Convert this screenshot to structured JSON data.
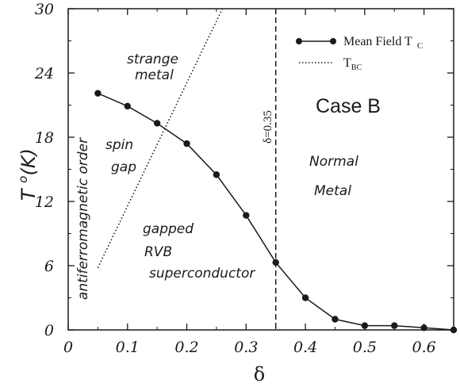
{
  "chart_data": {
    "type": "line",
    "title": "",
    "xlabel": "δ",
    "ylabel": "T (°K)",
    "xlim": [
      0,
      0.65
    ],
    "ylim": [
      0,
      30
    ],
    "xticks": [
      0,
      0.1,
      0.2,
      0.3,
      0.4,
      0.5,
      0.6
    ],
    "xtick_labels": [
      "0",
      "0.1",
      "0.2",
      "0.3",
      "0.4",
      "0.5",
      "0.6"
    ],
    "yticks": [
      0,
      6,
      12,
      18,
      24,
      30
    ],
    "ytick_labels": [
      "0",
      "6",
      "12",
      "18",
      "24",
      "30"
    ],
    "grid": false,
    "legend_position": "top-right",
    "series": [
      {
        "name": "Mean Field T",
        "name_subscript": "C",
        "style": "solid-line-with-filled-circles",
        "color": "#1a1a1a",
        "x": [
          0.05,
          0.1,
          0.15,
          0.2,
          0.25,
          0.3,
          0.35,
          0.4,
          0.45,
          0.5,
          0.55,
          0.6,
          0.65
        ],
        "y": [
          22.1,
          20.9,
          19.3,
          17.4,
          14.5,
          10.7,
          6.3,
          3.0,
          1.0,
          0.4,
          0.4,
          0.2,
          0.0
        ]
      },
      {
        "name": "T",
        "name_subscript": "BC",
        "style": "dotted-line",
        "color": "#1a1a1a",
        "x": [
          0.05,
          0.26
        ],
        "y": [
          5.8,
          30
        ]
      }
    ],
    "vertical_line": {
      "x": 0.35,
      "style": "dashed",
      "label": "δ=0.35"
    },
    "annotations": {
      "case": "Case B",
      "strange_metal_1": "strange",
      "strange_metal_2": "metal",
      "spin_gap_1": "spin",
      "spin_gap_2": "gap",
      "afm": "antiferromagnetic order",
      "normal_metal_1": "Normal",
      "normal_metal_2": "Metal",
      "gapped_rvb_1": "gapped",
      "gapped_rvb_2": "RVB",
      "gapped_rvb_3": "superconductor"
    }
  }
}
